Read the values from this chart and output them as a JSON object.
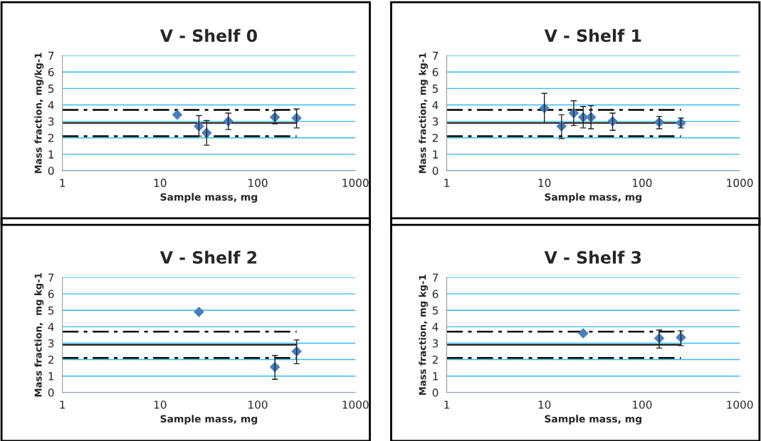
{
  "chart_data": [
    {
      "type": "scatter",
      "title": "V - Shelf 0",
      "xlabel": "Sample mass, mg",
      "ylabel": "Mass fraction, mg/kg-1",
      "log": "x",
      "xlim": [
        1,
        1000
      ],
      "xticks": [
        1,
        10,
        100,
        1000
      ],
      "ylim": [
        0,
        7
      ],
      "yticks": [
        0,
        1,
        2,
        3,
        4,
        5,
        6,
        7
      ],
      "grid": "y",
      "series": [
        {
          "marker": "diamond",
          "color": "#4a7ebb",
          "x": [
            15,
            25,
            30,
            50,
            150,
            250
          ],
          "values": [
            3.4,
            2.7,
            2.3,
            3.0,
            3.25,
            3.2
          ],
          "errors": [
            null,
            [
              2.1,
              3.35
            ],
            [
              1.55,
              3.05
            ],
            [
              2.5,
              3.5
            ],
            [
              2.85,
              3.65
            ],
            [
              2.6,
              3.75
            ]
          ]
        },
        {
          "type": "line",
          "color": "#000000",
          "line_style": "solid",
          "x": [
            1,
            250
          ],
          "values": [
            2.9,
            2.9
          ]
        },
        {
          "type": "line",
          "color": "#000000",
          "line_style": "dashdot",
          "x": [
            1,
            250
          ],
          "values": [
            3.7,
            3.7
          ]
        },
        {
          "type": "line",
          "color": "#000000",
          "line_style": "dashdot",
          "x": [
            1,
            250
          ],
          "values": [
            2.1,
            2.1
          ]
        }
      ]
    },
    {
      "type": "scatter",
      "title": "V - Shelf 1",
      "xlabel": "Sample mass, mg",
      "ylabel": "Mass fraction, mg kg-1",
      "log": "x",
      "xlim": [
        1,
        1000
      ],
      "xticks": [
        1,
        10,
        100,
        1000
      ],
      "ylim": [
        0,
        7
      ],
      "yticks": [
        0,
        1,
        2,
        3,
        4,
        5,
        6,
        7
      ],
      "grid": "y",
      "series": [
        {
          "marker": "diamond",
          "color": "#4a7ebb",
          "x": [
            10,
            15,
            20,
            25,
            30,
            50,
            150,
            250
          ],
          "values": [
            3.8,
            2.7,
            3.5,
            3.25,
            3.25,
            3.0,
            2.95,
            2.9
          ],
          "errors": [
            [
              2.9,
              4.7
            ],
            [
              1.95,
              3.4
            ],
            [
              2.75,
              4.25
            ],
            [
              2.6,
              3.9
            ],
            [
              2.55,
              3.95
            ],
            [
              2.45,
              3.5
            ],
            [
              2.55,
              3.3
            ],
            [
              2.6,
              3.2
            ]
          ]
        },
        {
          "type": "line",
          "color": "#000000",
          "line_style": "solid",
          "x": [
            1,
            250
          ],
          "values": [
            2.9,
            2.9
          ]
        },
        {
          "type": "line",
          "color": "#000000",
          "line_style": "dashdot",
          "x": [
            1,
            250
          ],
          "values": [
            3.7,
            3.7
          ]
        },
        {
          "type": "line",
          "color": "#000000",
          "line_style": "dashdot",
          "x": [
            1,
            250
          ],
          "values": [
            2.1,
            2.1
          ]
        }
      ]
    },
    {
      "type": "scatter",
      "title": "V - Shelf 2",
      "xlabel": "Sample mass, mg",
      "ylabel": "Mass fraction,  mg kg-1",
      "log": "x",
      "xlim": [
        1,
        1000
      ],
      "xticks": [
        1,
        10,
        100,
        1000
      ],
      "ylim": [
        0,
        7
      ],
      "yticks": [
        0,
        1,
        2,
        3,
        4,
        5,
        6,
        7
      ],
      "grid": "y",
      "series": [
        {
          "marker": "diamond",
          "color": "#4a7ebb",
          "x": [
            25,
            150,
            250
          ],
          "values": [
            4.9,
            1.55,
            2.5
          ],
          "errors": [
            null,
            [
              0.8,
              2.25
            ],
            [
              1.75,
              3.2
            ]
          ]
        },
        {
          "type": "line",
          "color": "#000000",
          "line_style": "solid",
          "x": [
            1,
            250
          ],
          "values": [
            2.9,
            2.9
          ]
        },
        {
          "type": "line",
          "color": "#000000",
          "line_style": "dashdot",
          "x": [
            1,
            250
          ],
          "values": [
            3.7,
            3.7
          ]
        },
        {
          "type": "line",
          "color": "#000000",
          "line_style": "dashdot",
          "x": [
            1,
            250
          ],
          "values": [
            2.1,
            2.1
          ]
        }
      ]
    },
    {
      "type": "scatter",
      "title": "V - Shelf 3",
      "xlabel": "Sample mass, mg",
      "ylabel": "Mass fraction, mg kg-1",
      "log": "x",
      "xlim": [
        1,
        1000
      ],
      "xticks": [
        1,
        10,
        100,
        1000
      ],
      "ylim": [
        0,
        7
      ],
      "yticks": [
        0,
        1,
        2,
        3,
        4,
        5,
        6,
        7
      ],
      "grid": "y",
      "series": [
        {
          "marker": "diamond",
          "color": "#4a7ebb",
          "x": [
            25,
            150,
            250
          ],
          "values": [
            3.6,
            3.3,
            3.35
          ],
          "errors": [
            null,
            [
              2.7,
              3.8
            ],
            [
              2.85,
              3.75
            ]
          ]
        },
        {
          "type": "line",
          "color": "#000000",
          "line_style": "solid",
          "x": [
            1,
            250
          ],
          "values": [
            2.9,
            2.9
          ]
        },
        {
          "type": "line",
          "color": "#000000",
          "line_style": "dashdot",
          "x": [
            1,
            250
          ],
          "values": [
            3.7,
            3.7
          ]
        },
        {
          "type": "line",
          "color": "#000000",
          "line_style": "dashdot",
          "x": [
            1,
            250
          ],
          "values": [
            2.1,
            2.1
          ]
        }
      ]
    }
  ]
}
